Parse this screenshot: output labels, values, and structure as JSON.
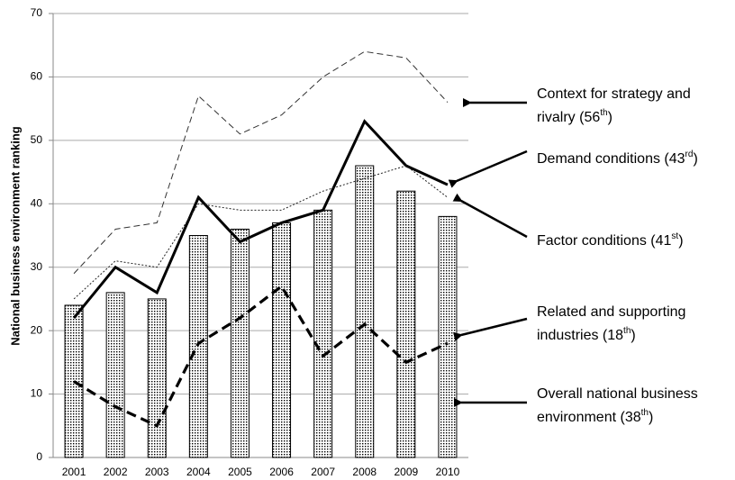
{
  "chart_data": {
    "type": "bar",
    "ylabel": "National business environment ranking",
    "categories": [
      "2001",
      "2002",
      "2003",
      "2004",
      "2005",
      "2006",
      "2007",
      "2008",
      "2009",
      "2010"
    ],
    "values": [
      24,
      26,
      25,
      35,
      36,
      37,
      39,
      46,
      42,
      38
    ],
    "color": "#000000",
    "series": [
      {
        "type": "line",
        "style": "thin-dashed",
        "color": "#333333",
        "values": [
          29,
          36,
          37,
          57,
          51,
          54,
          60,
          64,
          63,
          56
        ]
      },
      {
        "type": "line",
        "style": "thick-solid",
        "color": "#000000",
        "values": [
          22,
          30,
          26,
          41,
          34,
          37,
          39,
          53,
          46,
          43
        ]
      },
      {
        "type": "line",
        "style": "thin-dotted",
        "color": "#222222",
        "values": [
          25,
          31,
          30,
          40,
          39,
          39,
          42,
          44,
          46,
          41
        ]
      },
      {
        "type": "line",
        "style": "thick-dashed",
        "color": "#000000",
        "values": [
          12,
          8,
          5,
          18,
          22,
          27,
          16,
          21,
          15,
          18
        ]
      }
    ],
    "ylim": [
      0,
      70
    ],
    "yticks": [
      0,
      10,
      20,
      30,
      40,
      50,
      60,
      70
    ],
    "grid": true,
    "annotations": [
      {
        "lines": [
          "Context for strategy and",
          "rivalry (56"
        ],
        "sup": "th",
        "after": ")"
      },
      {
        "lines": [
          "Demand conditions (43"
        ],
        "sup": "rd",
        "after": ")"
      },
      {
        "lines": [
          "Factor conditions (41"
        ],
        "sup": "st",
        "after": ")"
      },
      {
        "lines": [
          "Related and supporting",
          "industries (18"
        ],
        "sup": "th",
        "after": ")"
      },
      {
        "lines": [
          "Overall national business",
          "environment (38"
        ],
        "sup": "th",
        "after": ")"
      }
    ]
  }
}
